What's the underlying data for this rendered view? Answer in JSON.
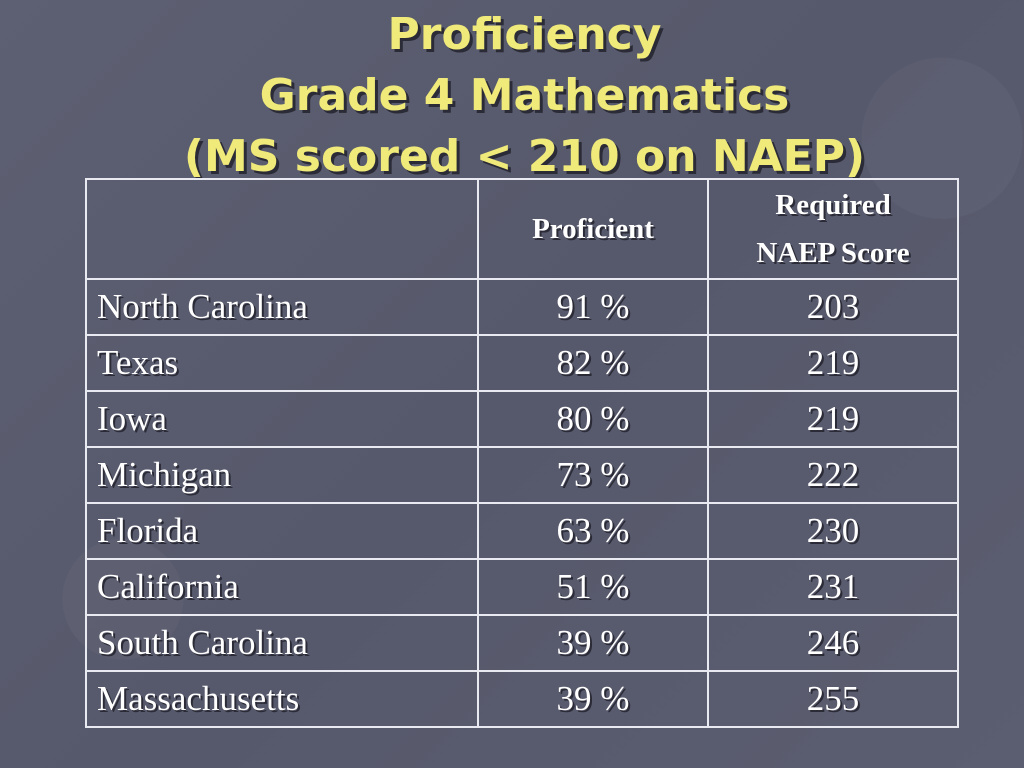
{
  "title": {
    "line1": "Proficiency",
    "line2": "Grade 4 Mathematics",
    "line3": "(MS scored < 210 on NAEP)"
  },
  "table": {
    "headers": {
      "state": "",
      "proficient": "Proficient",
      "required_line1": "Required",
      "required_line2": "NAEP Score"
    },
    "rows": [
      {
        "state": "North Carolina",
        "proficient": "91 %",
        "score": "203"
      },
      {
        "state": "Texas",
        "proficient": "82 %",
        "score": "219"
      },
      {
        "state": "Iowa",
        "proficient": "80 %",
        "score": "219"
      },
      {
        "state": "Michigan",
        "proficient": "73 %",
        "score": "222"
      },
      {
        "state": "Florida",
        "proficient": "63 %",
        "score": "230"
      },
      {
        "state": "California",
        "proficient": "51 %",
        "score": "231"
      },
      {
        "state": "South Carolina",
        "proficient": "39 %",
        "score": "246"
      },
      {
        "state": "Massachusetts",
        "proficient": "39 %",
        "score": "255"
      }
    ]
  },
  "colors": {
    "background": "#5a5c6f",
    "title": "#f0ea7a",
    "text": "#ffffff",
    "border": "#e9e9f2"
  }
}
